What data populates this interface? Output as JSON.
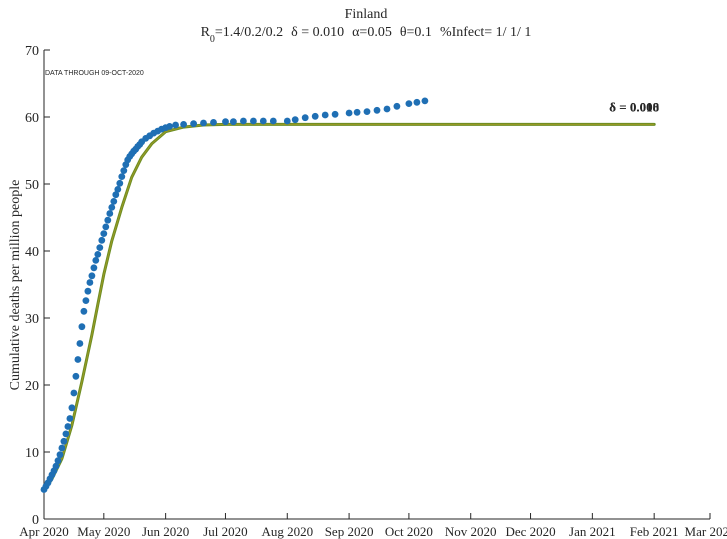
{
  "chart_data": {
    "type": "line",
    "title": "Finland",
    "subtitle": {
      "r0_prefix": "R",
      "r0_sub": "0",
      "r0_value": "=1.4/0.2/0.2",
      "delta_part": "δ = 0.010",
      "alpha_part": "α=0.05",
      "theta_part": "θ=0.1",
      "infect_part": "%Infect= 1/ 1/ 1"
    },
    "annotation": "DATA THROUGH 09-OCT-2020",
    "ylabel": "Cumulative deaths per million people",
    "xlabel": "",
    "ylim": [
      0,
      70
    ],
    "yticks": [
      0,
      10,
      20,
      30,
      40,
      50,
      60,
      70
    ],
    "xlim": [
      "2020-04-01",
      "2021-03-01"
    ],
    "xticks": [
      {
        "date": "2020-04-01",
        "label": "Apr 2020"
      },
      {
        "date": "2020-05-01",
        "label": "May 2020"
      },
      {
        "date": "2020-06-01",
        "label": "Jun 2020"
      },
      {
        "date": "2020-07-01",
        "label": "Jul 2020"
      },
      {
        "date": "2020-08-01",
        "label": "Aug 2020"
      },
      {
        "date": "2020-09-01",
        "label": "Sep 2020"
      },
      {
        "date": "2020-10-01",
        "label": "Oct 2020"
      },
      {
        "date": "2020-11-01",
        "label": "Nov 2020"
      },
      {
        "date": "2020-12-01",
        "label": "Dec 2020"
      },
      {
        "date": "2021-01-01",
        "label": "Jan 2021"
      },
      {
        "date": "2021-02-01",
        "label": "Feb 2021"
      },
      {
        "date": "2021-03-01",
        "label": "Mar 2021"
      }
    ],
    "series": [
      {
        "name": "",
        "kind": "model-line",
        "color": "#6b8e23",
        "x": [
          "2020-04-01",
          "2020-04-05",
          "2020-04-10",
          "2020-04-15",
          "2020-04-20",
          "2020-04-25",
          "2020-04-28",
          "2020-05-01",
          "2020-05-05",
          "2020-05-10",
          "2020-05-15",
          "2020-05-20",
          "2020-05-25",
          "2020-06-01",
          "2020-06-10",
          "2020-06-20",
          "2020-07-01",
          "2020-08-01",
          "2020-09-01",
          "2020-10-01",
          "2020-11-01",
          "2020-12-01",
          "2021-01-01",
          "2021-02-01"
        ],
        "y": [
          4.2,
          6.0,
          9.0,
          14.0,
          20.5,
          27.5,
          32.0,
          36.5,
          41.5,
          46.5,
          51.0,
          54.0,
          56.0,
          57.8,
          58.5,
          58.8,
          58.9,
          58.9,
          58.9,
          58.9,
          58.9,
          58.9,
          58.9,
          58.9
        ]
      },
      {
        "name": "",
        "kind": "observed-dots",
        "color": "#1f6fb4",
        "x": [
          "2020-04-01",
          "2020-04-02",
          "2020-04-03",
          "2020-04-04",
          "2020-04-05",
          "2020-04-06",
          "2020-04-07",
          "2020-04-08",
          "2020-04-09",
          "2020-04-10",
          "2020-04-11",
          "2020-04-12",
          "2020-04-13",
          "2020-04-14",
          "2020-04-15",
          "2020-04-16",
          "2020-04-17",
          "2020-04-18",
          "2020-04-19",
          "2020-04-20",
          "2020-04-21",
          "2020-04-22",
          "2020-04-23",
          "2020-04-24",
          "2020-04-25",
          "2020-04-26",
          "2020-04-27",
          "2020-04-28",
          "2020-04-29",
          "2020-04-30",
          "2020-05-01",
          "2020-05-02",
          "2020-05-03",
          "2020-05-04",
          "2020-05-05",
          "2020-05-06",
          "2020-05-07",
          "2020-05-08",
          "2020-05-09",
          "2020-05-10",
          "2020-05-11",
          "2020-05-12",
          "2020-05-13",
          "2020-05-14",
          "2020-05-15",
          "2020-05-16",
          "2020-05-17",
          "2020-05-18",
          "2020-05-19",
          "2020-05-20",
          "2020-05-22",
          "2020-05-24",
          "2020-05-26",
          "2020-05-28",
          "2020-05-30",
          "2020-06-01",
          "2020-06-03",
          "2020-06-06",
          "2020-06-10",
          "2020-06-15",
          "2020-06-20",
          "2020-06-25",
          "2020-07-01",
          "2020-07-05",
          "2020-07-10",
          "2020-07-15",
          "2020-07-20",
          "2020-07-25",
          "2020-08-01",
          "2020-08-05",
          "2020-08-10",
          "2020-08-15",
          "2020-08-20",
          "2020-08-25",
          "2020-09-01",
          "2020-09-05",
          "2020-09-10",
          "2020-09-15",
          "2020-09-20",
          "2020-09-25",
          "2020-10-01",
          "2020-10-05",
          "2020-10-09"
        ],
        "y": [
          4.4,
          4.9,
          5.4,
          6.0,
          6.6,
          7.2,
          7.9,
          8.7,
          9.6,
          10.6,
          11.6,
          12.7,
          13.8,
          15.0,
          16.6,
          18.8,
          21.3,
          23.8,
          26.2,
          28.7,
          31.0,
          32.6,
          34.0,
          35.3,
          36.3,
          37.5,
          38.6,
          39.5,
          40.5,
          41.6,
          42.6,
          43.6,
          44.6,
          45.6,
          46.5,
          47.4,
          48.4,
          49.2,
          50.1,
          51.1,
          52.0,
          52.9,
          53.6,
          54.1,
          54.5,
          54.9,
          55.2,
          55.6,
          55.9,
          56.3,
          56.8,
          57.2,
          57.6,
          57.9,
          58.2,
          58.4,
          58.6,
          58.8,
          58.9,
          59.0,
          59.1,
          59.2,
          59.3,
          59.3,
          59.4,
          59.4,
          59.4,
          59.4,
          59.4,
          59.6,
          59.9,
          60.1,
          60.3,
          60.4,
          60.6,
          60.7,
          60.8,
          61.0,
          61.2,
          61.6,
          62.0,
          62.2,
          62.4
        ]
      }
    ],
    "end_labels": [
      "δ = 0.008",
      "δ = 0.010"
    ]
  }
}
